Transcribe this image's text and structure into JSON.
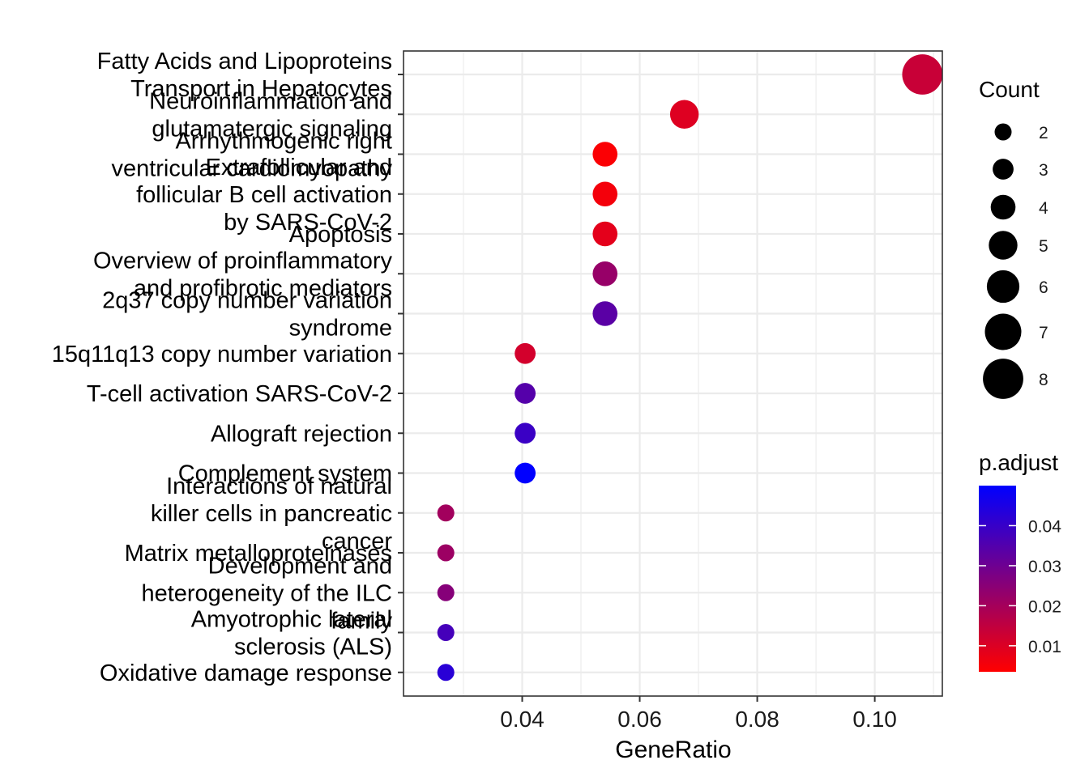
{
  "chart_data": {
    "type": "scatter",
    "xlabel": "GeneRatio",
    "x_ticks": [
      0.04,
      0.06,
      0.08,
      0.1
    ],
    "x_tick_labels": [
      "0.04",
      "0.06",
      "0.08",
      "0.10"
    ],
    "xlim": [
      0.0198,
      0.1115
    ],
    "points": [
      {
        "label_lines": [
          "Fatty Acids and Lipoproteins",
          "Transport in Hepatocytes"
        ],
        "gene_ratio": 0.1081,
        "count": 8,
        "p_adjust": 0.0135
      },
      {
        "label_lines": [
          "Neuroinflammation and",
          "glutamatergic signaling"
        ],
        "gene_ratio": 0.0676,
        "count": 5,
        "p_adjust": 0.0095
      },
      {
        "label_lines": [
          "Arrhythmogenic right",
          "ventricular cardiomyopathy"
        ],
        "gene_ratio": 0.0541,
        "count": 4,
        "p_adjust": 0.0042
      },
      {
        "label_lines": [
          "Extrafollicular and",
          "follicular B cell activation",
          "by SARS-CoV-2"
        ],
        "gene_ratio": 0.0541,
        "count": 4,
        "p_adjust": 0.0055
      },
      {
        "label_lines": [
          "Apoptosis"
        ],
        "gene_ratio": 0.0541,
        "count": 4,
        "p_adjust": 0.0085
      },
      {
        "label_lines": [
          "Overview of proinflammatory",
          "and profibrotic mediators"
        ],
        "gene_ratio": 0.0541,
        "count": 4,
        "p_adjust": 0.0225
      },
      {
        "label_lines": [
          "2q37 copy number variation",
          "syndrome"
        ],
        "gene_ratio": 0.0541,
        "count": 4,
        "p_adjust": 0.0335
      },
      {
        "label_lines": [
          "15q11q13 copy number variation"
        ],
        "gene_ratio": 0.0405,
        "count": 3,
        "p_adjust": 0.0115
      },
      {
        "label_lines": [
          "T-cell activation SARS-CoV-2"
        ],
        "gene_ratio": 0.0405,
        "count": 3,
        "p_adjust": 0.0345
      },
      {
        "label_lines": [
          "Allograft rejection"
        ],
        "gene_ratio": 0.0405,
        "count": 3,
        "p_adjust": 0.0395
      },
      {
        "label_lines": [
          "Complement system"
        ],
        "gene_ratio": 0.0405,
        "count": 3,
        "p_adjust": 0.05
      },
      {
        "label_lines": [
          "Interactions of natural",
          "killer cells in pancreatic",
          "cancer"
        ],
        "gene_ratio": 0.027,
        "count": 2,
        "p_adjust": 0.0205
      },
      {
        "label_lines": [
          "Matrix metalloproteinases"
        ],
        "gene_ratio": 0.027,
        "count": 2,
        "p_adjust": 0.0215
      },
      {
        "label_lines": [
          "Development and",
          "heterogeneity of the ILC",
          "family"
        ],
        "gene_ratio": 0.027,
        "count": 2,
        "p_adjust": 0.0255
      },
      {
        "label_lines": [
          "Amyotrophic lateral",
          "sclerosis (ALS)"
        ],
        "gene_ratio": 0.027,
        "count": 2,
        "p_adjust": 0.0375
      },
      {
        "label_lines": [
          "Oxidative damage response"
        ],
        "gene_ratio": 0.027,
        "count": 2,
        "p_adjust": 0.0425
      }
    ],
    "size_legend": {
      "title": "Count",
      "values": [
        2,
        3,
        4,
        5,
        6,
        7,
        8
      ],
      "labels": [
        "2",
        "3",
        "4",
        "5",
        "6",
        "7",
        "8"
      ]
    },
    "color_legend": {
      "title": "p.adjust",
      "low_color": "#ff0000",
      "high_color": "#0000ff",
      "range": [
        0.0035,
        0.05
      ],
      "ticks": [
        0.01,
        0.02,
        0.03,
        0.04
      ],
      "tick_labels": [
        "0.01",
        "0.02",
        "0.03",
        "0.04"
      ]
    },
    "grid": true,
    "legend_position": "right"
  }
}
